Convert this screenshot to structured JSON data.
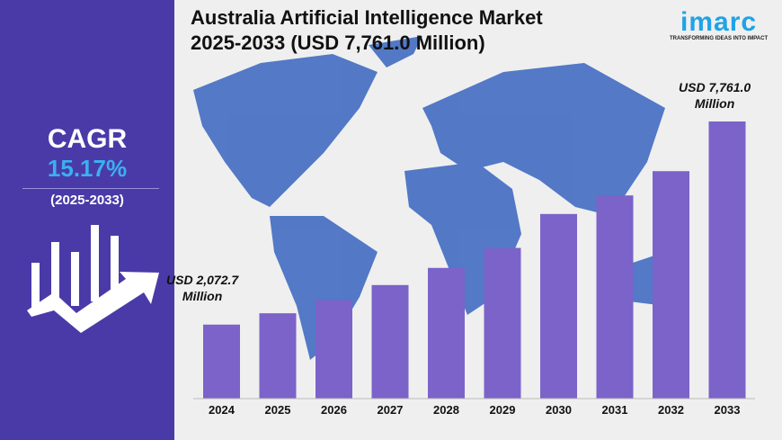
{
  "title_line1": "Australia Artificial Intelligence Market",
  "title_line2": "2025-2033 (USD 7,761.0 Million)",
  "logo": {
    "wordmark": "imarc",
    "tagline": "TRANSFORMING IDEAS INTO IMPACT"
  },
  "sidebar": {
    "label": "CAGR",
    "value": "15.17%",
    "period": "(2025-2033)",
    "icon": "growth-chart-arrow-icon"
  },
  "colors": {
    "sidebar": "#4a3aa8",
    "bar": "#7b63c9",
    "map": "#4a72c4",
    "cagr": "#3bb0ef"
  },
  "chart_data": {
    "type": "bar",
    "categories": [
      "2024",
      "2025",
      "2026",
      "2027",
      "2028",
      "2029",
      "2030",
      "2031",
      "2032",
      "2033"
    ],
    "values": [
      2072.7,
      2390,
      2760,
      3180,
      3660,
      4220,
      5170,
      5690,
      6370,
      7761.0
    ],
    "annotations": [
      {
        "line1": "USD 2,072.7",
        "line2": "Million"
      },
      {
        "line1": "USD 7,761.0",
        "line2": "Million"
      }
    ],
    "ylim": [
      0,
      8000
    ],
    "grid": false
  }
}
